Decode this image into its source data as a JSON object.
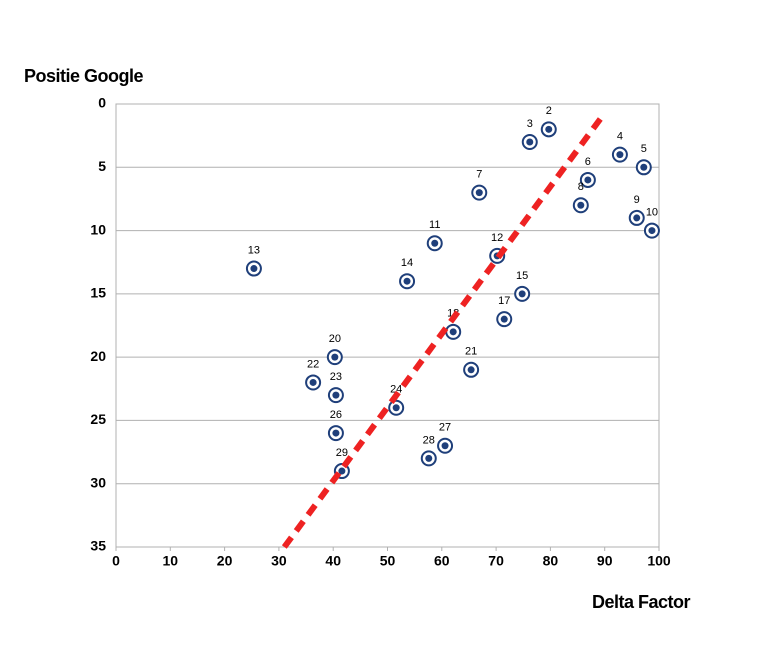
{
  "chart_data": {
    "type": "scatter",
    "y_axis_title": "Positie Google",
    "x_axis_title": "Delta Factor",
    "series": [
      {
        "name": "Positie",
        "color": "#1f3f7a",
        "x": [
          79.7,
          76.2,
          92.8,
          97.2,
          86.9,
          66.9,
          85.6,
          95.9,
          98.7,
          58.7,
          70.2,
          25.4,
          53.6,
          74.8,
          71.5,
          62.1,
          40.3,
          65.4,
          36.3,
          40.5,
          51.6,
          40.5,
          60.6,
          57.6,
          41.6
        ],
        "values": [
          2,
          3,
          4,
          5,
          6,
          7,
          8,
          9,
          10,
          11,
          12,
          13,
          14,
          15,
          17,
          18,
          20,
          21,
          22,
          23,
          24,
          26,
          27,
          28,
          29
        ]
      }
    ],
    "trendline": {
      "x": [
        31,
        89.5
      ],
      "y": [
        35,
        1
      ],
      "color": "#ee2222"
    },
    "xlim": [
      0,
      100
    ],
    "xticks": [
      0,
      10,
      20,
      30,
      40,
      50,
      60,
      70,
      80,
      90,
      100
    ],
    "ylim": [
      0,
      35
    ],
    "yticks": [
      0,
      5,
      10,
      15,
      20,
      25,
      30,
      35
    ],
    "y_inverted": true,
    "grid": true
  }
}
